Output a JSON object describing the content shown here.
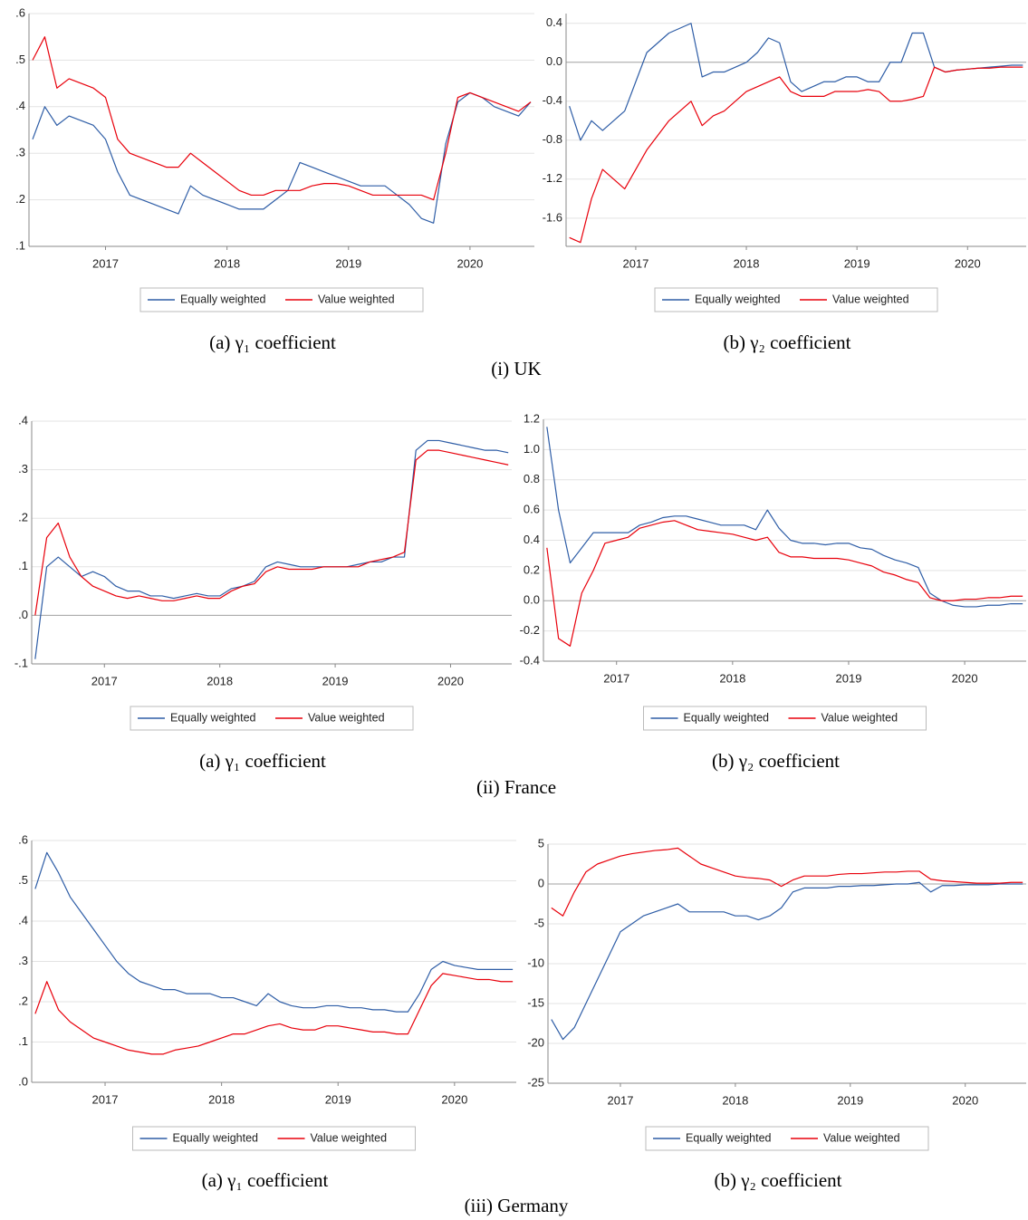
{
  "chart_data": [
    {
      "type": "line",
      "caption": "(a) γ₁ coefficient",
      "grid": true,
      "legend": "bottom",
      "x": [
        2016.4,
        2016.5,
        2016.6,
        2016.7,
        2016.8,
        2016.9,
        2017.0,
        2017.1,
        2017.2,
        2017.3,
        2017.4,
        2017.5,
        2017.6,
        2017.7,
        2017.8,
        2017.9,
        2018.0,
        2018.1,
        2018.2,
        2018.3,
        2018.4,
        2018.5,
        2018.6,
        2018.7,
        2018.8,
        2018.9,
        2019.0,
        2019.1,
        2019.2,
        2019.3,
        2019.4,
        2019.5,
        2019.6,
        2019.7,
        2019.8,
        2019.9,
        2020.0,
        2020.1,
        2020.2,
        2020.3,
        2020.4,
        2020.5
      ],
      "xlim": [
        2016.37,
        2020.53
      ],
      "xticks": [
        2017,
        2018,
        2019,
        2020
      ],
      "ylim": [
        0.1,
        0.6
      ],
      "yticks": [
        {
          "value": 0.1,
          "label": ".1"
        },
        {
          "value": 0.2,
          "label": ".2"
        },
        {
          "value": 0.3,
          "label": ".3"
        },
        {
          "value": 0.4,
          "label": ".4"
        },
        {
          "value": 0.5,
          "label": ".5"
        },
        {
          "value": 0.6,
          "label": ".6"
        }
      ],
      "series": [
        {
          "name": "Equally weighted",
          "color": "#2e5da6",
          "values": [
            0.33,
            0.4,
            0.36,
            0.38,
            0.37,
            0.36,
            0.33,
            0.26,
            0.21,
            0.2,
            0.19,
            0.18,
            0.17,
            0.23,
            0.21,
            0.2,
            0.19,
            0.18,
            0.18,
            0.18,
            0.2,
            0.22,
            0.28,
            0.27,
            0.26,
            0.25,
            0.24,
            0.23,
            0.23,
            0.23,
            0.21,
            0.19,
            0.16,
            0.15,
            0.32,
            0.41,
            0.43,
            0.42,
            0.4,
            0.39,
            0.38,
            0.41
          ]
        },
        {
          "name": "Value weighted",
          "color": "#e8000b",
          "values": [
            0.5,
            0.55,
            0.44,
            0.46,
            0.45,
            0.44,
            0.42,
            0.33,
            0.3,
            0.29,
            0.28,
            0.27,
            0.27,
            0.3,
            0.28,
            0.26,
            0.24,
            0.22,
            0.21,
            0.21,
            0.22,
            0.22,
            0.22,
            0.23,
            0.235,
            0.235,
            0.23,
            0.22,
            0.21,
            0.21,
            0.21,
            0.21,
            0.21,
            0.2,
            0.3,
            0.42,
            0.43,
            0.42,
            0.41,
            0.4,
            0.39,
            0.41
          ]
        }
      ]
    },
    {
      "type": "line",
      "caption": "(b) γ₂ coefficient",
      "grid": true,
      "legend": "bottom",
      "x": [
        2016.4,
        2016.5,
        2016.6,
        2016.7,
        2016.8,
        2016.9,
        2017.0,
        2017.1,
        2017.2,
        2017.3,
        2017.4,
        2017.5,
        2017.6,
        2017.7,
        2017.8,
        2017.9,
        2018.0,
        2018.1,
        2018.2,
        2018.3,
        2018.4,
        2018.5,
        2018.6,
        2018.7,
        2018.8,
        2018.9,
        2019.0,
        2019.1,
        2019.2,
        2019.3,
        2019.4,
        2019.5,
        2019.6,
        2019.7,
        2019.8,
        2019.9,
        2020.0,
        2020.1,
        2020.2,
        2020.3,
        2020.4,
        2020.5
      ],
      "xlim": [
        2016.37,
        2020.53
      ],
      "xticks": [
        2017,
        2018,
        2019,
        2020
      ],
      "ylim": [
        -1.89,
        0.5
      ],
      "yticks": [
        -1.6,
        -1.2,
        -0.8,
        -0.4,
        {
          "value": 0,
          "label": "0.0"
        },
        0.4
      ],
      "series": [
        {
          "name": "Equally weighted",
          "color": "#2e5da6",
          "values": [
            -0.45,
            -0.8,
            -0.6,
            -0.7,
            -0.6,
            -0.5,
            -0.2,
            0.1,
            0.2,
            0.3,
            0.35,
            0.4,
            -0.15,
            -0.1,
            -0.1,
            -0.05,
            0.0,
            0.1,
            0.25,
            0.2,
            -0.2,
            -0.3,
            -0.25,
            -0.2,
            -0.2,
            -0.15,
            -0.15,
            -0.2,
            -0.2,
            0.0,
            0.0,
            0.3,
            0.3,
            -0.05,
            -0.1,
            -0.08,
            -0.07,
            -0.06,
            -0.05,
            -0.04,
            -0.03,
            -0.03
          ]
        },
        {
          "name": "Value weighted",
          "color": "#e8000b",
          "values": [
            -1.8,
            -1.85,
            -1.4,
            -1.1,
            -1.2,
            -1.3,
            -1.1,
            -0.9,
            -0.75,
            -0.6,
            -0.5,
            -0.4,
            -0.65,
            -0.55,
            -0.5,
            -0.4,
            -0.3,
            -0.25,
            -0.2,
            -0.15,
            -0.3,
            -0.35,
            -0.35,
            -0.35,
            -0.3,
            -0.3,
            -0.3,
            -0.28,
            -0.3,
            -0.4,
            -0.4,
            -0.38,
            -0.35,
            -0.05,
            -0.1,
            -0.08,
            -0.07,
            -0.06,
            -0.06,
            -0.05,
            -0.05,
            -0.05
          ]
        }
      ]
    },
    {
      "type": "line",
      "caption": "(a) γ₁ coefficient",
      "grid": true,
      "legend": "bottom",
      "x": [
        2016.4,
        2016.5,
        2016.6,
        2016.7,
        2016.8,
        2016.9,
        2017.0,
        2017.1,
        2017.2,
        2017.3,
        2017.4,
        2017.5,
        2017.6,
        2017.7,
        2017.8,
        2017.9,
        2018.0,
        2018.1,
        2018.2,
        2018.3,
        2018.4,
        2018.5,
        2018.6,
        2018.7,
        2018.8,
        2018.9,
        2019.0,
        2019.1,
        2019.2,
        2019.3,
        2019.4,
        2019.5,
        2019.6,
        2019.7,
        2019.8,
        2019.9,
        2020.0,
        2020.1,
        2020.2,
        2020.3,
        2020.4,
        2020.5
      ],
      "xlim": [
        2016.37,
        2020.53
      ],
      "xticks": [
        2017,
        2018,
        2019,
        2020
      ],
      "ylim": [
        -0.1,
        0.4
      ],
      "yticks": [
        {
          "value": -0.1,
          "label": "-.1"
        },
        {
          "value": 0,
          "label": ".0"
        },
        {
          "value": 0.1,
          "label": ".1"
        },
        {
          "value": 0.2,
          "label": ".2"
        },
        {
          "value": 0.3,
          "label": ".3"
        },
        {
          "value": 0.4,
          "label": ".4"
        }
      ],
      "series": [
        {
          "name": "Equally weighted",
          "color": "#2e5da6",
          "values": [
            -0.09,
            0.1,
            0.12,
            0.1,
            0.08,
            0.09,
            0.08,
            0.06,
            0.05,
            0.05,
            0.04,
            0.04,
            0.035,
            0.04,
            0.045,
            0.04,
            0.04,
            0.055,
            0.06,
            0.07,
            0.1,
            0.11,
            0.105,
            0.1,
            0.1,
            0.1,
            0.1,
            0.1,
            0.105,
            0.11,
            0.11,
            0.12,
            0.12,
            0.34,
            0.36,
            0.36,
            0.355,
            0.35,
            0.345,
            0.34,
            0.34,
            0.335
          ]
        },
        {
          "name": "Value weighted",
          "color": "#e8000b",
          "values": [
            0.0,
            0.16,
            0.19,
            0.12,
            0.08,
            0.06,
            0.05,
            0.04,
            0.035,
            0.04,
            0.035,
            0.03,
            0.03,
            0.035,
            0.04,
            0.035,
            0.035,
            0.05,
            0.06,
            0.065,
            0.09,
            0.1,
            0.095,
            0.095,
            0.095,
            0.1,
            0.1,
            0.1,
            0.1,
            0.11,
            0.115,
            0.12,
            0.13,
            0.32,
            0.34,
            0.34,
            0.335,
            0.33,
            0.325,
            0.32,
            0.315,
            0.31
          ]
        }
      ]
    },
    {
      "type": "line",
      "caption": "(b) γ₂ coefficient",
      "grid": true,
      "legend": "bottom",
      "x": [
        2016.4,
        2016.5,
        2016.6,
        2016.7,
        2016.8,
        2016.9,
        2017.0,
        2017.1,
        2017.2,
        2017.3,
        2017.4,
        2017.5,
        2017.6,
        2017.7,
        2017.8,
        2017.9,
        2018.0,
        2018.1,
        2018.2,
        2018.3,
        2018.4,
        2018.5,
        2018.6,
        2018.7,
        2018.8,
        2018.9,
        2019.0,
        2019.1,
        2019.2,
        2019.3,
        2019.4,
        2019.5,
        2019.6,
        2019.7,
        2019.8,
        2019.9,
        2020.0,
        2020.1,
        2020.2,
        2020.3,
        2020.4,
        2020.5
      ],
      "xlim": [
        2016.37,
        2020.53
      ],
      "xticks": [
        2017,
        2018,
        2019,
        2020
      ],
      "ylim": [
        -0.4,
        1.2
      ],
      "yticks": [
        -0.4,
        -0.2,
        {
          "value": 0,
          "label": "0.0"
        },
        0.2,
        0.4,
        0.6,
        0.8,
        {
          "value": 1,
          "label": "1.0"
        },
        1.2
      ],
      "series": [
        {
          "name": "Equally weighted",
          "color": "#2e5da6",
          "values": [
            1.15,
            0.6,
            0.25,
            0.35,
            0.45,
            0.45,
            0.45,
            0.45,
            0.5,
            0.52,
            0.55,
            0.56,
            0.56,
            0.54,
            0.52,
            0.5,
            0.5,
            0.5,
            0.47,
            0.6,
            0.48,
            0.4,
            0.38,
            0.38,
            0.37,
            0.38,
            0.38,
            0.35,
            0.34,
            0.3,
            0.27,
            0.25,
            0.22,
            0.05,
            0.0,
            -0.03,
            -0.04,
            -0.04,
            -0.03,
            -0.03,
            -0.02,
            -0.02
          ]
        },
        {
          "name": "Value weighted",
          "color": "#e8000b",
          "values": [
            0.35,
            -0.25,
            -0.3,
            0.05,
            0.2,
            0.38,
            0.4,
            0.42,
            0.48,
            0.5,
            0.52,
            0.53,
            0.5,
            0.47,
            0.46,
            0.45,
            0.44,
            0.42,
            0.4,
            0.42,
            0.32,
            0.29,
            0.29,
            0.28,
            0.28,
            0.28,
            0.27,
            0.25,
            0.23,
            0.19,
            0.17,
            0.14,
            0.12,
            0.02,
            0.0,
            0.0,
            0.01,
            0.01,
            0.02,
            0.02,
            0.03,
            0.03
          ]
        }
      ]
    },
    {
      "type": "line",
      "caption": "(a) γ₁ coefficient",
      "grid": true,
      "legend": "bottom",
      "x": [
        2016.4,
        2016.5,
        2016.6,
        2016.7,
        2016.8,
        2016.9,
        2017.0,
        2017.1,
        2017.2,
        2017.3,
        2017.4,
        2017.5,
        2017.6,
        2017.7,
        2017.8,
        2017.9,
        2018.0,
        2018.1,
        2018.2,
        2018.3,
        2018.4,
        2018.5,
        2018.6,
        2018.7,
        2018.8,
        2018.9,
        2019.0,
        2019.1,
        2019.2,
        2019.3,
        2019.4,
        2019.5,
        2019.6,
        2019.7,
        2019.8,
        2019.9,
        2020.0,
        2020.1,
        2020.2,
        2020.3,
        2020.4,
        2020.5
      ],
      "xlim": [
        2016.37,
        2020.53
      ],
      "xticks": [
        2017,
        2018,
        2019,
        2020
      ],
      "ylim": [
        0,
        0.6
      ],
      "yticks": [
        {
          "value": 0,
          "label": ".0"
        },
        {
          "value": 0.1,
          "label": ".1"
        },
        {
          "value": 0.2,
          "label": ".2"
        },
        {
          "value": 0.3,
          "label": ".3"
        },
        {
          "value": 0.4,
          "label": ".4"
        },
        {
          "value": 0.5,
          "label": ".5"
        },
        {
          "value": 0.6,
          "label": ".6"
        }
      ],
      "series": [
        {
          "name": "Equally weighted",
          "color": "#2e5da6",
          "values": [
            0.48,
            0.57,
            0.52,
            0.46,
            0.42,
            0.38,
            0.34,
            0.3,
            0.27,
            0.25,
            0.24,
            0.23,
            0.23,
            0.22,
            0.22,
            0.22,
            0.21,
            0.21,
            0.2,
            0.19,
            0.22,
            0.2,
            0.19,
            0.185,
            0.185,
            0.19,
            0.19,
            0.185,
            0.185,
            0.18,
            0.18,
            0.175,
            0.175,
            0.22,
            0.28,
            0.3,
            0.29,
            0.285,
            0.28,
            0.28,
            0.28,
            0.28
          ]
        },
        {
          "name": "Value weighted",
          "color": "#e8000b",
          "values": [
            0.17,
            0.25,
            0.18,
            0.15,
            0.13,
            0.11,
            0.1,
            0.09,
            0.08,
            0.075,
            0.07,
            0.07,
            0.08,
            0.085,
            0.09,
            0.1,
            0.11,
            0.12,
            0.12,
            0.13,
            0.14,
            0.145,
            0.135,
            0.13,
            0.13,
            0.14,
            0.14,
            0.135,
            0.13,
            0.125,
            0.125,
            0.12,
            0.12,
            0.18,
            0.24,
            0.27,
            0.265,
            0.26,
            0.255,
            0.255,
            0.25,
            0.25
          ]
        }
      ]
    },
    {
      "type": "line",
      "caption": "(b) γ₂ coefficient",
      "grid": true,
      "legend": "bottom",
      "x": [
        2016.4,
        2016.5,
        2016.6,
        2016.7,
        2016.8,
        2016.9,
        2017.0,
        2017.1,
        2017.2,
        2017.3,
        2017.4,
        2017.5,
        2017.6,
        2017.7,
        2017.8,
        2017.9,
        2018.0,
        2018.1,
        2018.2,
        2018.3,
        2018.4,
        2018.5,
        2018.6,
        2018.7,
        2018.8,
        2018.9,
        2019.0,
        2019.1,
        2019.2,
        2019.3,
        2019.4,
        2019.5,
        2019.6,
        2019.7,
        2019.8,
        2019.9,
        2020.0,
        2020.1,
        2020.2,
        2020.3,
        2020.4,
        2020.5
      ],
      "xlim": [
        2016.37,
        2020.53
      ],
      "xticks": [
        2017,
        2018,
        2019,
        2020
      ],
      "ylim": [
        -25,
        5
      ],
      "yticks": [
        -25,
        -20,
        -15,
        -10,
        -5,
        0,
        5
      ],
      "series": [
        {
          "name": "Equally weighted",
          "color": "#2e5da6",
          "values": [
            -17,
            -19.5,
            -18,
            -15,
            -12,
            -9,
            -6,
            -5,
            -4,
            -3.5,
            -3,
            -2.5,
            -3.5,
            -3.5,
            -3.5,
            -3.5,
            -4,
            -4,
            -4.5,
            -4,
            -3,
            -1,
            -0.5,
            -0.5,
            -0.5,
            -0.3,
            -0.3,
            -0.2,
            -0.2,
            -0.1,
            0,
            0,
            0.2,
            -1,
            -0.2,
            -0.2,
            -0.1,
            -0.1,
            -0.1,
            0,
            0,
            0
          ]
        },
        {
          "name": "Value weighted",
          "color": "#e8000b",
          "values": [
            -3,
            -4,
            -1,
            1.5,
            2.5,
            3,
            3.5,
            3.8,
            4,
            4.2,
            4.3,
            4.5,
            3.5,
            2.5,
            2,
            1.5,
            1,
            0.8,
            0.7,
            0.5,
            -0.3,
            0.5,
            1,
            1,
            1,
            1.2,
            1.3,
            1.3,
            1.4,
            1.5,
            1.5,
            1.6,
            1.6,
            0.6,
            0.4,
            0.3,
            0.2,
            0.1,
            0.1,
            0.1,
            0.2,
            0.2
          ]
        }
      ]
    }
  ],
  "captions": [
    "(i) UK",
    "(ii) France",
    "(iii) Germany"
  ]
}
